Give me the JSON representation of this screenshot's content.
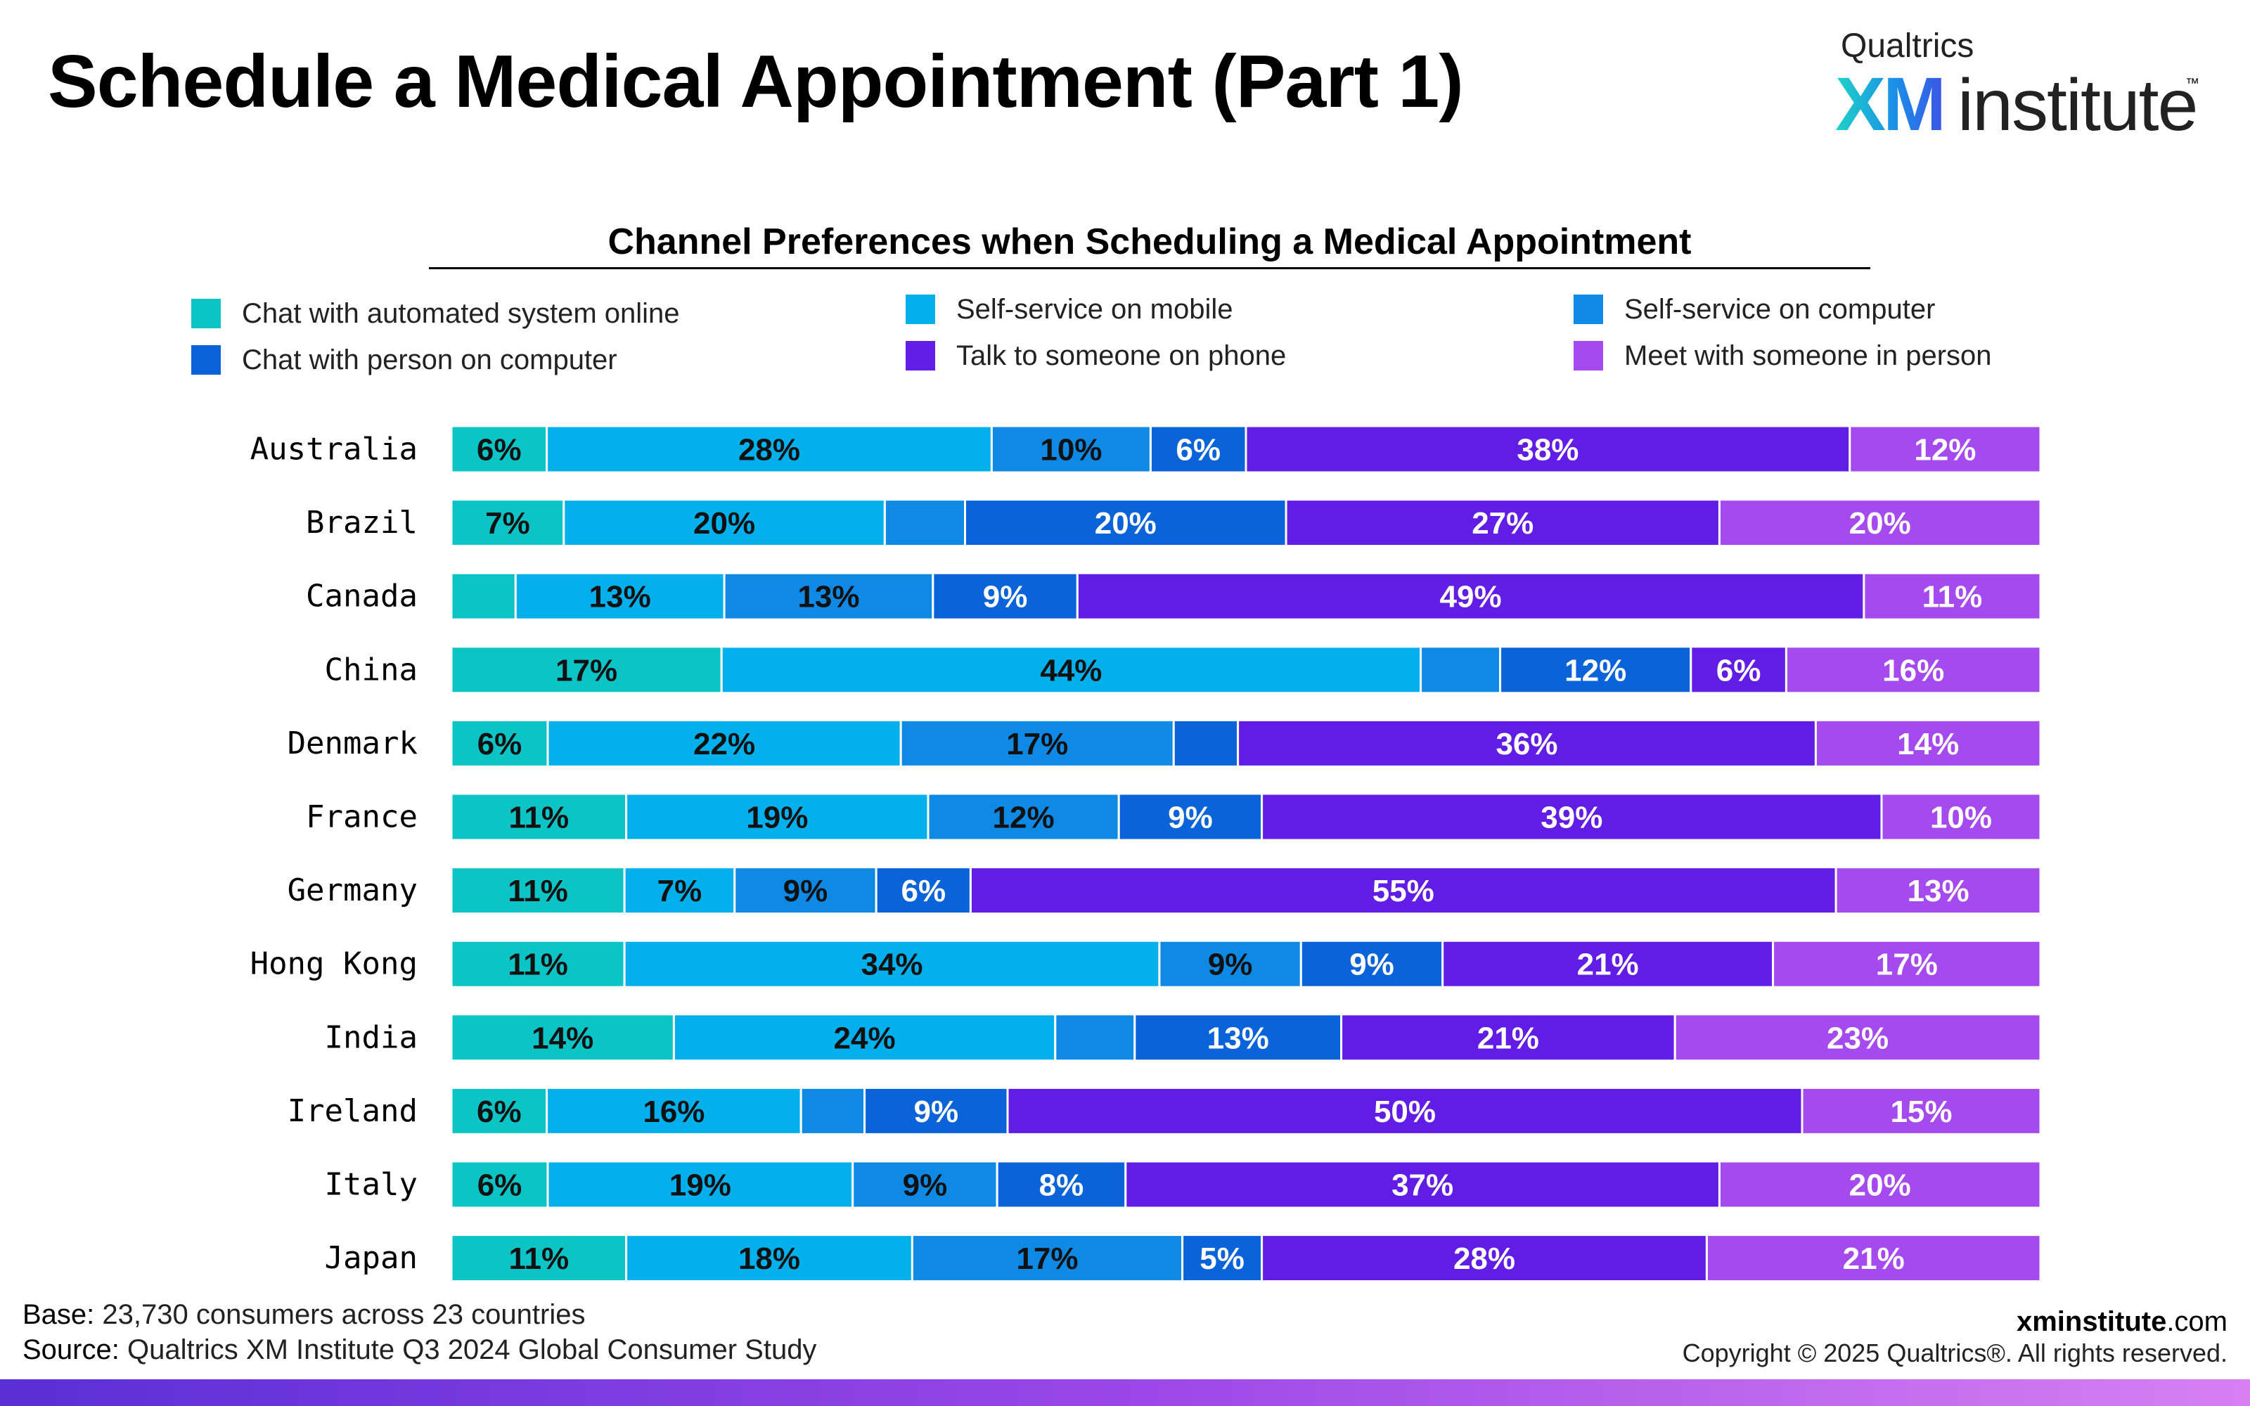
{
  "page": {
    "title": "Schedule a Medical Appointment (Part 1)",
    "logo": {
      "top": "Qualtrics",
      "xm": "XM",
      "institute": "institute",
      "tm": "™"
    }
  },
  "footer": {
    "base_label": "Base:",
    "base_text": "23,730 consumers across 23 countries",
    "source_label": "Source:",
    "source_text": "Qualtrics XM Institute Q3 2024 Global Consumer Study",
    "site_bold": "xminstitute",
    "site_rest": ".com",
    "copyright": "Copyright © 2025 Qualtrics®. All rights reserved."
  },
  "colors": {
    "chat_automated": "#0cc4c6",
    "self_mobile": "#04b0ec",
    "self_computer": "#0e89e4",
    "chat_person": "#0a63d8",
    "phone": "#611de6",
    "in_person": "#a44aef"
  },
  "chart_data": {
    "type": "bar",
    "orientation": "horizontal",
    "stacked": true,
    "title": "Channel Preferences when Scheduling a Medical Appointment",
    "legend_position": "top",
    "xlim": [
      0,
      100
    ],
    "unit": "%",
    "categories": [
      "Australia",
      "Brazil",
      "Canada",
      "China",
      "Denmark",
      "France",
      "Germany",
      "Hong Kong",
      "India",
      "Ireland",
      "Italy",
      "Japan"
    ],
    "series": [
      {
        "name": "Chat with automated system online",
        "color": "#0cc4c6",
        "values": [
          6,
          7,
          4,
          17,
          6,
          11,
          11,
          11,
          14,
          6,
          6,
          11
        ]
      },
      {
        "name": "Self-service on mobile",
        "color": "#04b0ec",
        "values": [
          28,
          20,
          13,
          44,
          22,
          19,
          7,
          34,
          24,
          16,
          19,
          18
        ]
      },
      {
        "name": "Self-service on computer",
        "color": "#0e89e4",
        "values": [
          10,
          5,
          13,
          5,
          17,
          12,
          9,
          9,
          5,
          4,
          9,
          17
        ]
      },
      {
        "name": "Chat with person on computer",
        "color": "#0a63d8",
        "values": [
          6,
          20,
          9,
          12,
          4,
          9,
          6,
          9,
          13,
          9,
          8,
          5
        ]
      },
      {
        "name": "Talk to someone on phone",
        "color": "#611de6",
        "values": [
          38,
          27,
          49,
          6,
          36,
          39,
          55,
          21,
          21,
          50,
          37,
          28
        ]
      },
      {
        "name": "Meet with someone in person",
        "color": "#a44aef",
        "values": [
          12,
          20,
          11,
          16,
          14,
          10,
          13,
          17,
          23,
          15,
          20,
          21
        ]
      }
    ],
    "data_labels": [
      [
        "6%",
        "28%",
        "10%",
        "6%",
        "38%",
        "12%"
      ],
      [
        "7%",
        "20%",
        "",
        "20%",
        "27%",
        "20%"
      ],
      [
        "",
        "13%",
        "13%",
        "9%",
        "49%",
        "11%"
      ],
      [
        "17%",
        "44%",
        "",
        "12%",
        "6%",
        "16%"
      ],
      [
        "6%",
        "22%",
        "17%",
        "",
        "36%",
        "14%"
      ],
      [
        "11%",
        "19%",
        "12%",
        "9%",
        "39%",
        "10%"
      ],
      [
        "11%",
        "7%",
        "9%",
        "6%",
        "55%",
        "13%"
      ],
      [
        "11%",
        "34%",
        "9%",
        "9%",
        "21%",
        "17%"
      ],
      [
        "14%",
        "24%",
        "",
        "13%",
        "21%",
        "23%"
      ],
      [
        "6%",
        "16%",
        "",
        "9%",
        "50%",
        "15%"
      ],
      [
        "6%",
        "19%",
        "9%",
        "8%",
        "37%",
        "20%"
      ],
      [
        "11%",
        "18%",
        "17%",
        "5%",
        "28%",
        "21%"
      ]
    ],
    "label_dark": [
      [
        true,
        true,
        true,
        false,
        false,
        false
      ],
      [
        true,
        true,
        false,
        false,
        false,
        false
      ],
      [
        true,
        true,
        true,
        false,
        false,
        false
      ],
      [
        true,
        true,
        false,
        false,
        false,
        false
      ],
      [
        true,
        true,
        true,
        false,
        false,
        false
      ],
      [
        true,
        true,
        true,
        false,
        false,
        false
      ],
      [
        true,
        true,
        true,
        false,
        false,
        false
      ],
      [
        true,
        true,
        true,
        false,
        false,
        false
      ],
      [
        true,
        true,
        false,
        false,
        false,
        false
      ],
      [
        true,
        true,
        false,
        false,
        false,
        false
      ],
      [
        true,
        true,
        true,
        false,
        false,
        false
      ],
      [
        true,
        true,
        true,
        false,
        false,
        false
      ]
    ]
  }
}
